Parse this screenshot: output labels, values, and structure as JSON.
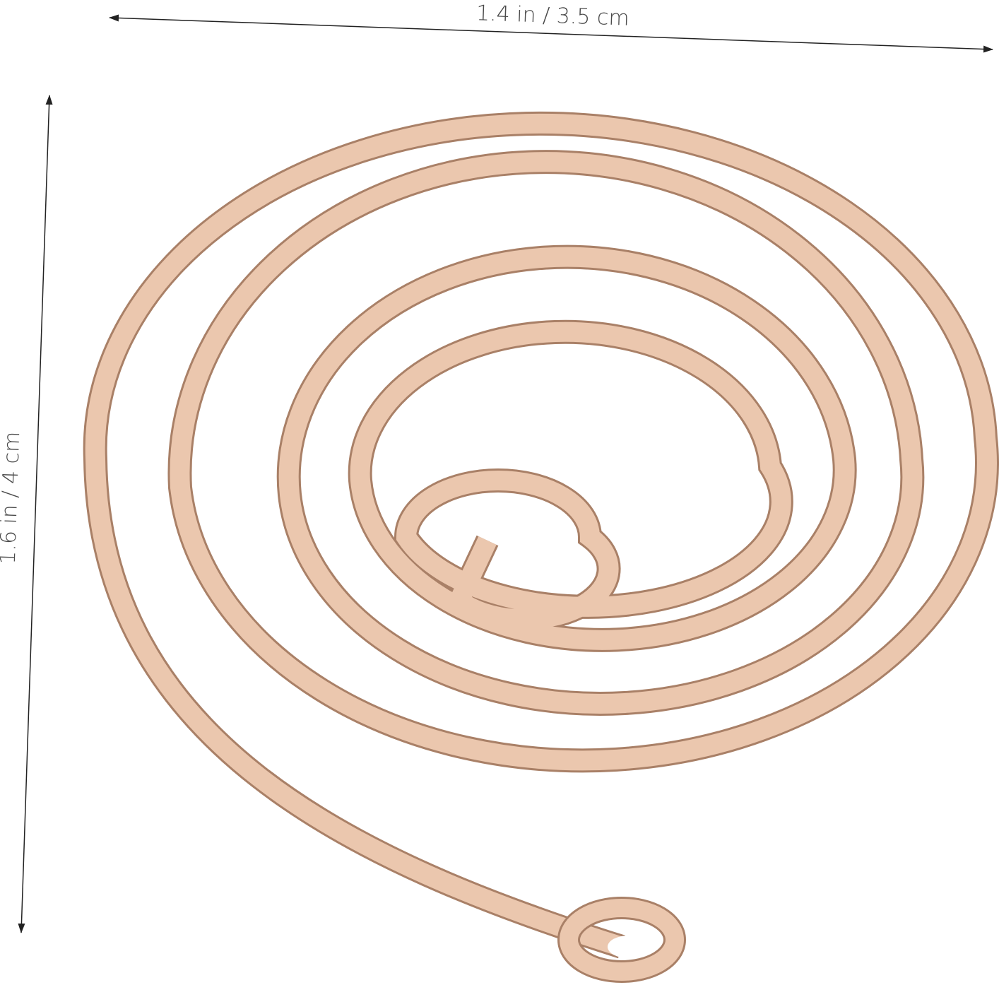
{
  "dimensions": {
    "width_label": "1.4 in / 3.5 cm",
    "height_label": "1.6 in / 4 cm"
  }
}
